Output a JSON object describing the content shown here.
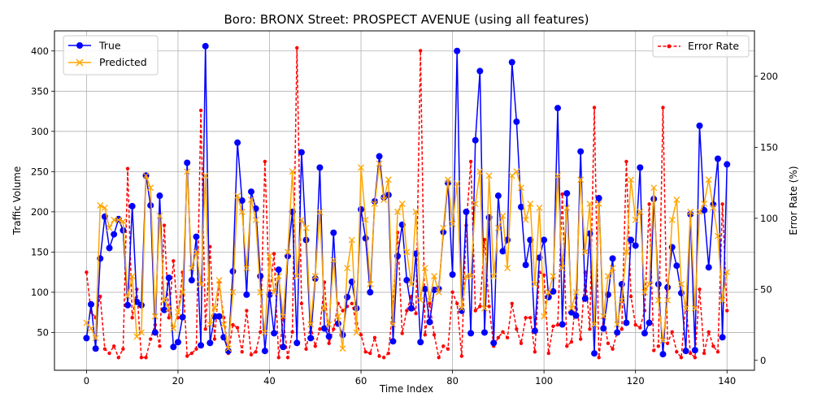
{
  "chart_data": {
    "type": "line",
    "title": "Boro: BRONX Street: PROSPECT AVENUE (using all features)",
    "xlabel": "Time Index",
    "ylabel": "Traffic Volume",
    "y2label": "Error Rate (%)",
    "xlim": [
      -7,
      146
    ],
    "ylim": [
      3,
      425
    ],
    "y2lim": [
      -7,
      232
    ],
    "xticks": [
      "0",
      "20",
      "40",
      "60",
      "80",
      "100",
      "120",
      "140"
    ],
    "yticks": [
      "50",
      "100",
      "150",
      "200",
      "250",
      "300",
      "350",
      "400"
    ],
    "y2ticks": [
      "0",
      "50",
      "100",
      "150",
      "200"
    ],
    "grid": true,
    "legend_left_position": "upper-left",
    "legend_right_position": "upper-right",
    "series": [
      {
        "name": "True",
        "axis": "left",
        "color": "#0000ff",
        "marker": "circle",
        "values": [
          43,
          85,
          30,
          142,
          194,
          155,
          172,
          191,
          177,
          84,
          207,
          88,
          84,
          245,
          208,
          50,
          220,
          78,
          118,
          32,
          38,
          69,
          261,
          115,
          169,
          34,
          406,
          37,
          70,
          70,
          44,
          27,
          126,
          286,
          214,
          97,
          225,
          204,
          120,
          27,
          97,
          49,
          128,
          32,
          145,
          200,
          37,
          274,
          165,
          43,
          117,
          255,
          55,
          45,
          174,
          61,
          47,
          94,
          113,
          80,
          203,
          167,
          100,
          213,
          269,
          218,
          221,
          39,
          145,
          184,
          115,
          80,
          148,
          38,
          104,
          63,
          103,
          104,
          175,
          236,
          122,
          400,
          77,
          200,
          49,
          289,
          375,
          50,
          193,
          37,
          220,
          151,
          165,
          386,
          312,
          206,
          134,
          165,
          52,
          143,
          165,
          94,
          101,
          329,
          60,
          223,
          75,
          71,
          275,
          92,
          173,
          24,
          217,
          55,
          97,
          142,
          50,
          110,
          62,
          165,
          158,
          255,
          49,
          62,
          216,
          110,
          23,
          106,
          156,
          133,
          99,
          27,
          197,
          28,
          307,
          202,
          131,
          209,
          266,
          44,
          259
        ]
      },
      {
        "name": "Predicted",
        "axis": "left",
        "color": "#ffa500",
        "marker": "x",
        "values": [
          62,
          55,
          43,
          208,
          205,
          180,
          190,
          190,
          188,
          95,
          120,
          45,
          50,
          245,
          230,
          70,
          195,
          90,
          80,
          55,
          75,
          100,
          250,
          130,
          150,
          110,
          245,
          60,
          80,
          115,
          60,
          30,
          100,
          220,
          200,
          130,
          215,
          190,
          100,
          50,
          145,
          100,
          120,
          70,
          150,
          250,
          120,
          190,
          180,
          60,
          120,
          200,
          80,
          60,
          140,
          70,
          30,
          130,
          165,
          50,
          255,
          190,
          110,
          210,
          260,
          215,
          240,
          60,
          200,
          210,
          150,
          110,
          200,
          90,
          130,
          90,
          120,
          100,
          180,
          240,
          185,
          235,
          80,
          120,
          120,
          210,
          250,
          80,
          245,
          120,
          180,
          195,
          130,
          245,
          250,
          230,
          190,
          210,
          110,
          205,
          70,
          100,
          120,
          245,
          130,
          205,
          80,
          100,
          240,
          150,
          210,
          60,
          210,
          70,
          120,
          130,
          60,
          90,
          150,
          240,
          190,
          200,
          100,
          110,
          230,
          90,
          40,
          90,
          190,
          215,
          110,
          80,
          200,
          80,
          200,
          210,
          240,
          205,
          170,
          90,
          125
        ]
      },
      {
        "name": "Error Rate",
        "axis": "right",
        "color": "#ff0000",
        "marker": "dot",
        "values": [
          62,
          34,
          30,
          45,
          8,
          5,
          10,
          2,
          8,
          135,
          30,
          50,
          2,
          2,
          15,
          25,
          10,
          95,
          30,
          70,
          30,
          62,
          3,
          5,
          8,
          176,
          22,
          80,
          15,
          55,
          30,
          5,
          25,
          23,
          6,
          35,
          4,
          6,
          20,
          140,
          45,
          75,
          2,
          30,
          2,
          20,
          220,
          40,
          8,
          25,
          10,
          22,
          55,
          12,
          22,
          40,
          35,
          38,
          40,
          26,
          18,
          6,
          5,
          16,
          3,
          2,
          5,
          40,
          90,
          19,
          35,
          45,
          33,
          218,
          18,
          40,
          18,
          2,
          10,
          8,
          48,
          40,
          3,
          95,
          140,
          35,
          38,
          85,
          38,
          10,
          16,
          20,
          16,
          40,
          22,
          12,
          30,
          30,
          6,
          62,
          60,
          5,
          24,
          25,
          117,
          10,
          13,
          44,
          15,
          62,
          22,
          178,
          2,
          30,
          12,
          8,
          20,
          22,
          140,
          45,
          25,
          23,
          35,
          110,
          7,
          10,
          178,
          12,
          20,
          6,
          2,
          40,
          5,
          2,
          50,
          5,
          20,
          10,
          6,
          110,
          35
        ]
      }
    ]
  }
}
